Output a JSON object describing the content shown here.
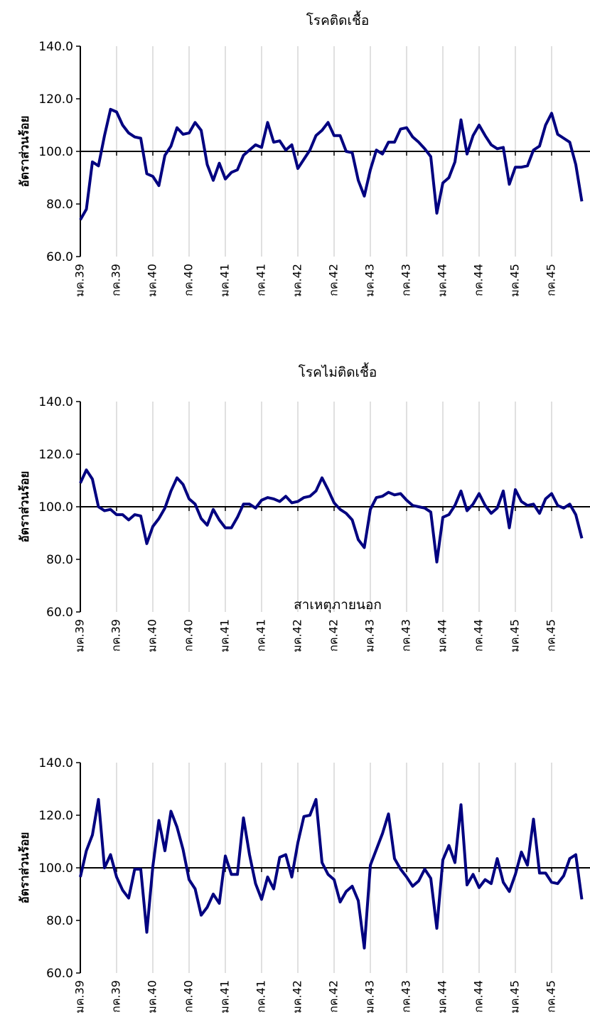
{
  "chart_data": [
    {
      "type": "line",
      "title": "โรคติดเชื้อ",
      "ylabel": "อัตราส่วนร้อย",
      "categories": [
        "มค.39",
        null,
        null,
        null,
        null,
        null,
        "กค.39",
        null,
        null,
        null,
        null,
        null,
        "มค.40",
        null,
        null,
        null,
        null,
        null,
        "กค.40",
        null,
        null,
        null,
        null,
        null,
        "มค.41",
        null,
        null,
        null,
        null,
        null,
        "กค.41",
        null,
        null,
        null,
        null,
        null,
        "มค.42",
        null,
        null,
        null,
        null,
        null,
        "กค.42",
        null,
        null,
        null,
        null,
        null,
        "มค.43",
        null,
        null,
        null,
        null,
        null,
        "กค.43",
        null,
        null,
        null,
        null,
        null,
        "มค.44",
        null,
        null,
        null,
        null,
        null,
        "กค.44",
        null,
        null,
        null,
        null,
        null,
        "มค.45",
        null,
        null,
        null,
        null,
        null,
        "กค.45",
        null,
        null,
        null,
        null,
        null
      ],
      "series": [
        {
          "name": "โรคติดเชื้อ",
          "color": "#000080",
          "values": [
            74,
            78,
            96,
            94.5,
            106,
            116,
            115,
            110,
            107,
            105.5,
            105,
            91.5,
            90.5,
            87,
            98.5,
            102,
            109,
            106.5,
            107,
            111,
            108,
            95,
            89,
            95.5,
            89.5,
            92,
            93,
            98.5,
            100.5,
            102.5,
            101.5,
            111,
            103.5,
            104,
            100.5,
            102.5,
            93.5,
            97,
            100.5,
            106,
            108,
            111,
            106,
            106,
            100,
            99.5,
            89,
            83,
            93,
            100.5,
            99,
            103.5,
            103.5,
            108.5,
            109,
            105.5,
            103.5,
            101,
            98,
            76.5,
            88,
            90,
            96,
            112,
            99,
            106,
            110,
            106,
            102.5,
            101,
            101.5,
            87.5,
            94,
            94,
            94.5,
            100.5,
            102,
            110,
            114.5,
            106.5,
            105,
            103.5,
            95,
            81
          ]
        }
      ],
      "ylim": [
        60,
        140
      ],
      "yticks": [
        {
          "value": 60,
          "label": "60.0"
        },
        {
          "value": 80,
          "label": "80.0"
        },
        {
          "value": 100,
          "label": "100.0"
        },
        {
          "value": 120,
          "label": "120.0"
        },
        {
          "value": 140,
          "label": "140.0"
        }
      ],
      "xaxis_crosses": 100,
      "grid": true
    },
    {
      "type": "line",
      "title": "โรคไม่ติดเชื้อ",
      "ylabel": "อัตราส่วนร้อย",
      "categories": [
        "มค.39",
        null,
        null,
        null,
        null,
        null,
        "กค.39",
        null,
        null,
        null,
        null,
        null,
        "มค.40",
        null,
        null,
        null,
        null,
        null,
        "กค.40",
        null,
        null,
        null,
        null,
        null,
        "มค.41",
        null,
        null,
        null,
        null,
        null,
        "กค.41",
        null,
        null,
        null,
        null,
        null,
        "มค.42",
        null,
        null,
        null,
        null,
        null,
        "กค.42",
        null,
        null,
        null,
        null,
        null,
        "มค.43",
        null,
        null,
        null,
        null,
        null,
        "กค.43",
        null,
        null,
        null,
        null,
        null,
        "มค.44",
        null,
        null,
        null,
        null,
        null,
        "กค.44",
        null,
        null,
        null,
        null,
        null,
        "มค.45",
        null,
        null,
        null,
        null,
        null,
        "กค.45",
        null,
        null,
        null,
        null,
        null
      ],
      "series": [
        {
          "name": "โรคไม่ติดเชื้อ",
          "color": "#000080",
          "values": [
            109,
            114,
            110.5,
            100,
            98.5,
            99,
            97,
            97,
            95,
            97,
            96.5,
            86,
            92.5,
            95.5,
            99.5,
            106,
            111,
            108.5,
            103,
            101,
            95.5,
            93,
            99,
            95,
            92,
            92,
            96,
            101,
            101,
            99.5,
            102.5,
            103.5,
            103,
            102,
            104,
            101.5,
            102,
            103.5,
            104,
            106,
            111,
            106.5,
            101.5,
            99,
            97.5,
            95,
            87.5,
            84.5,
            99,
            103.5,
            104,
            105.5,
            104.5,
            105,
            102.5,
            100.5,
            100,
            99.5,
            98,
            79,
            96,
            97,
            100.5,
            106,
            98.5,
            101,
            105,
            100.5,
            97.5,
            99.5,
            106,
            92,
            106.5,
            102,
            100.5,
            101,
            97.5,
            103,
            105,
            100.5,
            99.5,
            101,
            97,
            88
          ]
        }
      ],
      "ylim": [
        60,
        140
      ],
      "yticks": [
        {
          "value": 60,
          "label": "60.0"
        },
        {
          "value": 80,
          "label": "80.0"
        },
        {
          "value": 100,
          "label": "100.0"
        },
        {
          "value": 120,
          "label": "120.0"
        },
        {
          "value": 140,
          "label": "140.0"
        }
      ],
      "xaxis_crosses": 100,
      "grid": true
    },
    {
      "type": "line",
      "title": "สาเหตุภายนอก",
      "ylabel": "อัตราส่วนร้อย",
      "categories": [
        "มค.39",
        null,
        null,
        null,
        null,
        null,
        "กค.39",
        null,
        null,
        null,
        null,
        null,
        "มค.40",
        null,
        null,
        null,
        null,
        null,
        "กค.40",
        null,
        null,
        null,
        null,
        null,
        "มค.41",
        null,
        null,
        null,
        null,
        null,
        "กค.41",
        null,
        null,
        null,
        null,
        null,
        "มค.42",
        null,
        null,
        null,
        null,
        null,
        "กค.42",
        null,
        null,
        null,
        null,
        null,
        "มค.43",
        null,
        null,
        null,
        null,
        null,
        "กค.43",
        null,
        null,
        null,
        null,
        null,
        "มค.44",
        null,
        null,
        null,
        null,
        null,
        "กค.44",
        null,
        null,
        null,
        null,
        null,
        "มค.45",
        null,
        null,
        null,
        null,
        null,
        "กค.45",
        null,
        null,
        null,
        null,
        null
      ],
      "series": [
        {
          "name": "สาเหตุภายนอก",
          "color": "#000080",
          "values": [
            96.5,
            106.5,
            112.5,
            126,
            100,
            105,
            96.5,
            91.5,
            88.5,
            99.5,
            99.5,
            75.5,
            100.5,
            118,
            106.5,
            121.5,
            115.5,
            107,
            95.5,
            92,
            82,
            85,
            90,
            86.5,
            104.5,
            97.5,
            97.5,
            119,
            105,
            94,
            88,
            96.5,
            92,
            104,
            105,
            96.5,
            109.5,
            119.5,
            120,
            126,
            102,
            97.5,
            95.5,
            87,
            91,
            93,
            87.5,
            69.5,
            101,
            107,
            113,
            120.5,
            103.5,
            99.5,
            96.5,
            93,
            95,
            99.5,
            96,
            77,
            103,
            108.5,
            102,
            124,
            93.5,
            97.5,
            92.5,
            95.5,
            94,
            103.5,
            94.5,
            91,
            97.5,
            106,
            101,
            118.5,
            98,
            98,
            94.5,
            94,
            97,
            103.5,
            105,
            88
          ]
        }
      ],
      "ylim": [
        60,
        140
      ],
      "yticks": [
        {
          "value": 60,
          "label": "60.0"
        },
        {
          "value": 80,
          "label": "80.0"
        },
        {
          "value": 100,
          "label": "100.0"
        },
        {
          "value": 120,
          "label": "120.0"
        },
        {
          "value": 140,
          "label": "140.0"
        }
      ],
      "xaxis_crosses": 100,
      "grid": true
    }
  ]
}
